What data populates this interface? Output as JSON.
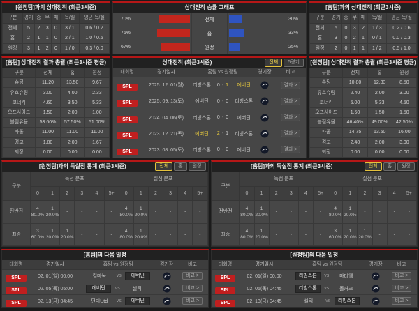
{
  "common": {
    "sep": "-",
    "vs": "vs"
  },
  "theme": {
    "accent_red": "#b51717",
    "badge_red": "#c01f1f",
    "bar_red": "#c3261d",
    "bar_blue": "#2f54c0",
    "highlight_yellow": "#f2d23d",
    "active_button_yellow": "#e5c23c"
  },
  "chart_data": {
    "type": "bar",
    "title": "상대전적 승률 그래프",
    "categories": [
      "전체",
      "홈",
      "원정"
    ],
    "series": [
      {
        "name": "red",
        "values": [
          70,
          75,
          67
        ]
      },
      {
        "name": "blue",
        "values": [
          30,
          33,
          25
        ]
      }
    ],
    "xlim": [
      0,
      100
    ],
    "legend": "none",
    "grid": false
  },
  "p1": {
    "title": "[원정팀]과의 상대전적 (최근3시즌)",
    "cols": [
      "구분",
      "경기",
      "승",
      "무",
      "패",
      "득/실",
      "평균 득/실"
    ],
    "rows": [
      [
        "전체",
        "5",
        "2",
        "3",
        "0",
        "3 / 1",
        "0.6 / 0.2"
      ],
      [
        "홈",
        "2",
        "1",
        "1",
        "0",
        "2 / 1",
        "1.0 / 0.5"
      ],
      [
        "원정",
        "3",
        "1",
        "2",
        "0",
        "1 / 0",
        "0.3 / 0.0"
      ]
    ]
  },
  "p2": {
    "title": "상대전적 승률 그래프",
    "rows": [
      {
        "lp": "70%",
        "lw": 70,
        "label": "전체",
        "rw": 30,
        "rp": "30%"
      },
      {
        "lp": "75%",
        "lw": 75,
        "label": "홈",
        "rw": 33,
        "rp": "33%"
      },
      {
        "lp": "67%",
        "lw": 67,
        "label": "원정",
        "rw": 25,
        "rp": "25%"
      }
    ]
  },
  "p3": {
    "title": "[홈팀]과의 상대전적 (최근3시즌)",
    "cols": [
      "구분",
      "경기",
      "승",
      "무",
      "패",
      "득/실",
      "평균 득/실"
    ],
    "rows": [
      [
        "전체",
        "5",
        "0",
        "3",
        "2",
        "1 / 3",
        "0.2 / 0.6"
      ],
      [
        "홈",
        "3",
        "0",
        "2",
        "1",
        "0 / 1",
        "0.0 / 0.3"
      ],
      [
        "원정",
        "2",
        "0",
        "1",
        "1",
        "1 / 2",
        "0.5 / 1.0"
      ]
    ]
  },
  "p4": {
    "title": "[홈팀] 상대전적 결과 총괄 (최근3시즌 평균)",
    "cols": [
      "구분",
      "전체",
      "홈",
      "원정"
    ],
    "rows": [
      [
        "슈팅",
        "11.20",
        "13.50",
        "9.67"
      ],
      [
        "유효슈팅",
        "3.00",
        "4.00",
        "2.33"
      ],
      [
        "코너킥",
        "4.60",
        "3.50",
        "5.33"
      ],
      [
        "오프사이드",
        "1.50",
        "2.00",
        "1.00"
      ],
      [
        "볼점유율",
        "53.60%",
        "57.50%",
        "51.00%"
      ],
      [
        "파울",
        "11.00",
        "11.00",
        "11.00"
      ],
      [
        "경고",
        "1.80",
        "2.00",
        "1.67"
      ],
      [
        "퇴장",
        "0.00",
        "0.00",
        "0.00"
      ]
    ]
  },
  "p5": {
    "title": "상대전적 (최근3시즌)",
    "buttons": [
      "전체",
      "5경기"
    ],
    "cols": [
      "대회명",
      "경기일시",
      "홈팀 vs 원정팀",
      "경기장",
      "비고"
    ],
    "rows": [
      {
        "league": "SPL",
        "date": "2025. 12. 01(월)",
        "home": "리빙스톤",
        "hstate": "",
        "hs": "0",
        "hss": "",
        "as": "1",
        "ass": "win",
        "away": "에버딘",
        "astate": "win",
        "action": "결과 >"
      },
      {
        "league": "SPL",
        "date": "2025. 09. 13(토)",
        "home": "에버딘",
        "hstate": "",
        "hs": "0",
        "hss": "",
        "as": "0",
        "ass": "",
        "away": "리빙스톤",
        "astate": "",
        "action": "결과 >"
      },
      {
        "league": "SPL",
        "date": "2024. 04. 06(토)",
        "home": "리빙스톤",
        "hstate": "",
        "hs": "0",
        "hss": "",
        "as": "0",
        "ass": "",
        "away": "에버딘",
        "astate": "",
        "action": "결과 >"
      },
      {
        "league": "SPL",
        "date": "2023. 12. 21(목)",
        "home": "에버딘",
        "hstate": "win",
        "hs": "2",
        "hss": "win",
        "as": "1",
        "ass": "",
        "away": "리빙스톤",
        "astate": "",
        "action": "결과 >"
      },
      {
        "league": "SPL",
        "date": "2023. 08. 05(토)",
        "home": "리빙스톤",
        "hstate": "",
        "hs": "0",
        "hss": "",
        "as": "0",
        "ass": "",
        "away": "에버딘",
        "astate": "",
        "action": "결과 >"
      }
    ]
  },
  "p6": {
    "title": "[원정팀] 상대전적 결과 총괄 (최근3시즌 평균)",
    "cols": [
      "구분",
      "전체",
      "홈",
      "원정"
    ],
    "rows": [
      [
        "슈팅",
        "10.80",
        "12.33",
        "8.50"
      ],
      [
        "유효슈팅",
        "2.40",
        "2.00",
        "3.00"
      ],
      [
        "코너킥",
        "5.00",
        "5.33",
        "4.50"
      ],
      [
        "오프사이드",
        "1.50",
        "1.50",
        "1.50"
      ],
      [
        "볼점유율",
        "46.40%",
        "49.00%",
        "42.50%"
      ],
      [
        "파울",
        "14.75",
        "13.50",
        "16.00"
      ],
      [
        "경고",
        "2.40",
        "2.00",
        "3.00"
      ],
      [
        "퇴장",
        "0.00",
        "0.00",
        "0.00"
      ]
    ]
  },
  "p7": {
    "title": "[원정팀]과의 득실점 통계 (최근3시즌)",
    "buttons": [
      "전체",
      "홈",
      "원정"
    ],
    "col_label": "구분",
    "g1": "득점 분포",
    "g2": "실점 분포",
    "bins": [
      "0",
      "1",
      "2",
      "3",
      "4",
      "5+"
    ],
    "rows": [
      {
        "label": "전반전",
        "scored": [
          "4\n80.0%",
          "1\n20.0%",
          "-",
          "-",
          "-",
          "-"
        ],
        "conceded": [
          "4\n80.0%",
          "1\n20.0%",
          "-",
          "-",
          "-",
          "-"
        ]
      },
      {
        "label": "최종",
        "scored": [
          "3\n60.0%",
          "1\n20.0%",
          "1\n20.0%",
          "-",
          "-",
          "-"
        ],
        "conceded": [
          "4\n80.0%",
          "1\n20.0%",
          "-",
          "-",
          "-",
          "-"
        ]
      }
    ]
  },
  "p8": {
    "title": "[홈팀]과의 득실점 통계 (최근3시즌)",
    "buttons": [
      "전체",
      "홈",
      "원정"
    ],
    "col_label": "구분",
    "g1": "득점 분포",
    "g2": "실점 분포",
    "bins": [
      "0",
      "1",
      "2",
      "3",
      "4",
      "5+"
    ],
    "rows": [
      {
        "label": "전반전",
        "scored": [
          "4\n80.0%",
          "1\n20.0%",
          "-",
          "-",
          "-",
          "-"
        ],
        "conceded": [
          "4\n80.0%",
          "1\n20.0%",
          "-",
          "-",
          "-",
          "-"
        ]
      },
      {
        "label": "최종",
        "scored": [
          "4\n80.0%",
          "1\n20.0%",
          "-",
          "-",
          "-",
          "-"
        ],
        "conceded": [
          "3\n60.0%",
          "1\n20.0%",
          "1\n20.0%",
          "-",
          "-",
          "-"
        ]
      }
    ]
  },
  "p9": {
    "title": "[홈팀]의 다음 일정",
    "cols": [
      "대회명",
      "경기일시",
      "홈팀 vs 원정팀",
      "경기장",
      "비고"
    ],
    "rows": [
      {
        "league": "SPL",
        "date": "02. 01(일) 00:00",
        "home": "킬마녹",
        "hstate": "",
        "away": "에버딘",
        "astate": "self",
        "action": "비교 >"
      },
      {
        "league": "SPL",
        "date": "02. 05(목) 05:00",
        "home": "에버딘",
        "hstate": "self",
        "away": "셀틱",
        "astate": "",
        "action": "비교 >"
      },
      {
        "league": "SPL",
        "date": "02. 13(금) 04:45",
        "home": "던디Utd",
        "hstate": "",
        "away": "에버딘",
        "astate": "self",
        "action": "비교 >"
      }
    ]
  },
  "p10": {
    "title": "[원정팀]의 다음 일정",
    "cols": [
      "대회명",
      "경기일시",
      "홈팀 vs 원정팀",
      "경기장",
      "비고"
    ],
    "rows": [
      {
        "league": "SPL",
        "date": "02. 01(일) 00:00",
        "home": "리빙스톤",
        "hstate": "self",
        "away": "마더웰",
        "astate": "",
        "action": "비교 >"
      },
      {
        "league": "SPL",
        "date": "02. 05(목) 04:45",
        "home": "리빙스톤",
        "hstate": "self",
        "away": "폴커크",
        "astate": "",
        "action": "비교 >"
      },
      {
        "league": "SPL",
        "date": "02. 13(금) 04:45",
        "home": "셀틱",
        "hstate": "",
        "away": "리빙스톤",
        "astate": "self",
        "action": "비교 >"
      }
    ]
  }
}
